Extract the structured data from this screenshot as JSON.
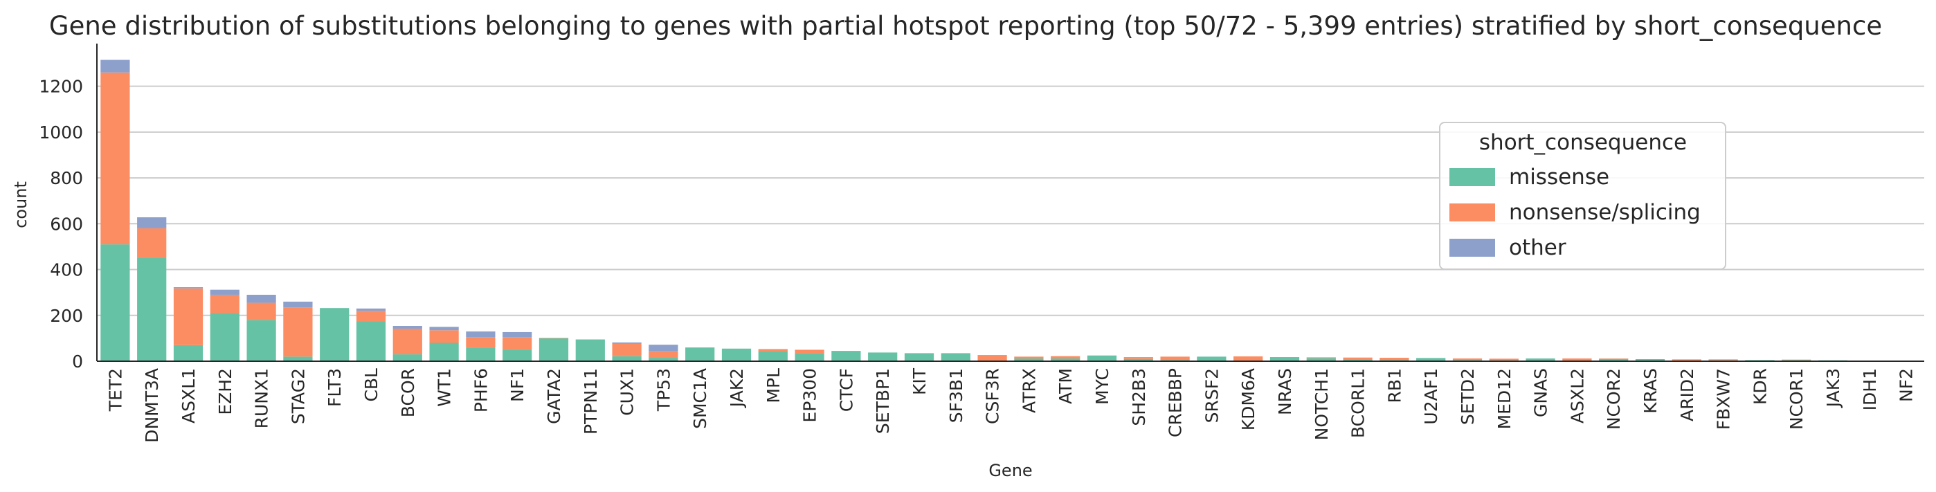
{
  "chart_data": {
    "type": "bar",
    "stacked": true,
    "title": "Gene distribution of substitutions belonging to genes with partial hotspot reporting (top 50/72 - 5,399 entries) stratified by short_consequence",
    "xlabel": "Gene",
    "ylabel": "count",
    "ylim": [
      0,
      1380
    ],
    "yticks": [
      0,
      200,
      400,
      600,
      800,
      1000,
      1200
    ],
    "grid": "horizontal",
    "legend": {
      "title": "short_consequence",
      "placement": "upper-right"
    },
    "categories": [
      "TET2",
      "DNMT3A",
      "ASXL1",
      "EZH2",
      "RUNX1",
      "STAG2",
      "FLT3",
      "CBL",
      "BCOR",
      "WT1",
      "PHF6",
      "NF1",
      "GATA2",
      "PTPN11",
      "CUX1",
      "TP53",
      "SMC1A",
      "JAK2",
      "MPL",
      "EP300",
      "CTCF",
      "SETBP1",
      "KIT",
      "SF3B1",
      "CSF3R",
      "ATRX",
      "ATM",
      "MYC",
      "SH2B3",
      "CREBBP",
      "SRSF2",
      "KDM6A",
      "NRAS",
      "NOTCH1",
      "BCORL1",
      "RB1",
      "U2AF1",
      "SETD2",
      "MED12",
      "GNAS",
      "ASXL2",
      "NCOR2",
      "KRAS",
      "ARID2",
      "FBXW7",
      "KDR",
      "NCOR1",
      "JAK3",
      "IDH1",
      "NF2"
    ],
    "series": [
      {
        "name": "missense",
        "color": "#66c2a5",
        "values": [
          510,
          450,
          70,
          210,
          180,
          20,
          232,
          175,
          30,
          80,
          60,
          50,
          100,
          95,
          22,
          15,
          60,
          55,
          45,
          35,
          45,
          38,
          35,
          35,
          2,
          12,
          12,
          25,
          10,
          5,
          20,
          3,
          18,
          14,
          6,
          5,
          14,
          5,
          4,
          12,
          2,
          10,
          9,
          2,
          4,
          5,
          5,
          4,
          1,
          1
        ]
      },
      {
        "name": "nonsense/splicing",
        "color": "#fc8d62",
        "values": [
          750,
          130,
          248,
          80,
          75,
          215,
          0,
          45,
          112,
          55,
          45,
          55,
          2,
          0,
          55,
          30,
          0,
          0,
          8,
          15,
          0,
          0,
          0,
          0,
          25,
          8,
          10,
          0,
          8,
          15,
          0,
          18,
          0,
          3,
          10,
          10,
          0,
          7,
          7,
          0,
          10,
          2,
          0,
          6,
          4,
          0,
          2,
          0,
          2,
          1
        ]
      },
      {
        "name": "other",
        "color": "#8da0cb",
        "values": [
          55,
          48,
          5,
          22,
          35,
          25,
          0,
          10,
          12,
          15,
          25,
          22,
          0,
          0,
          5,
          27,
          0,
          0,
          0,
          0,
          0,
          0,
          0,
          0,
          0,
          0,
          0,
          0,
          0,
          0,
          0,
          0,
          0,
          0,
          0,
          0,
          0,
          0,
          0,
          0,
          0,
          0,
          0,
          0,
          0,
          0,
          0,
          0,
          0,
          0
        ]
      }
    ]
  }
}
